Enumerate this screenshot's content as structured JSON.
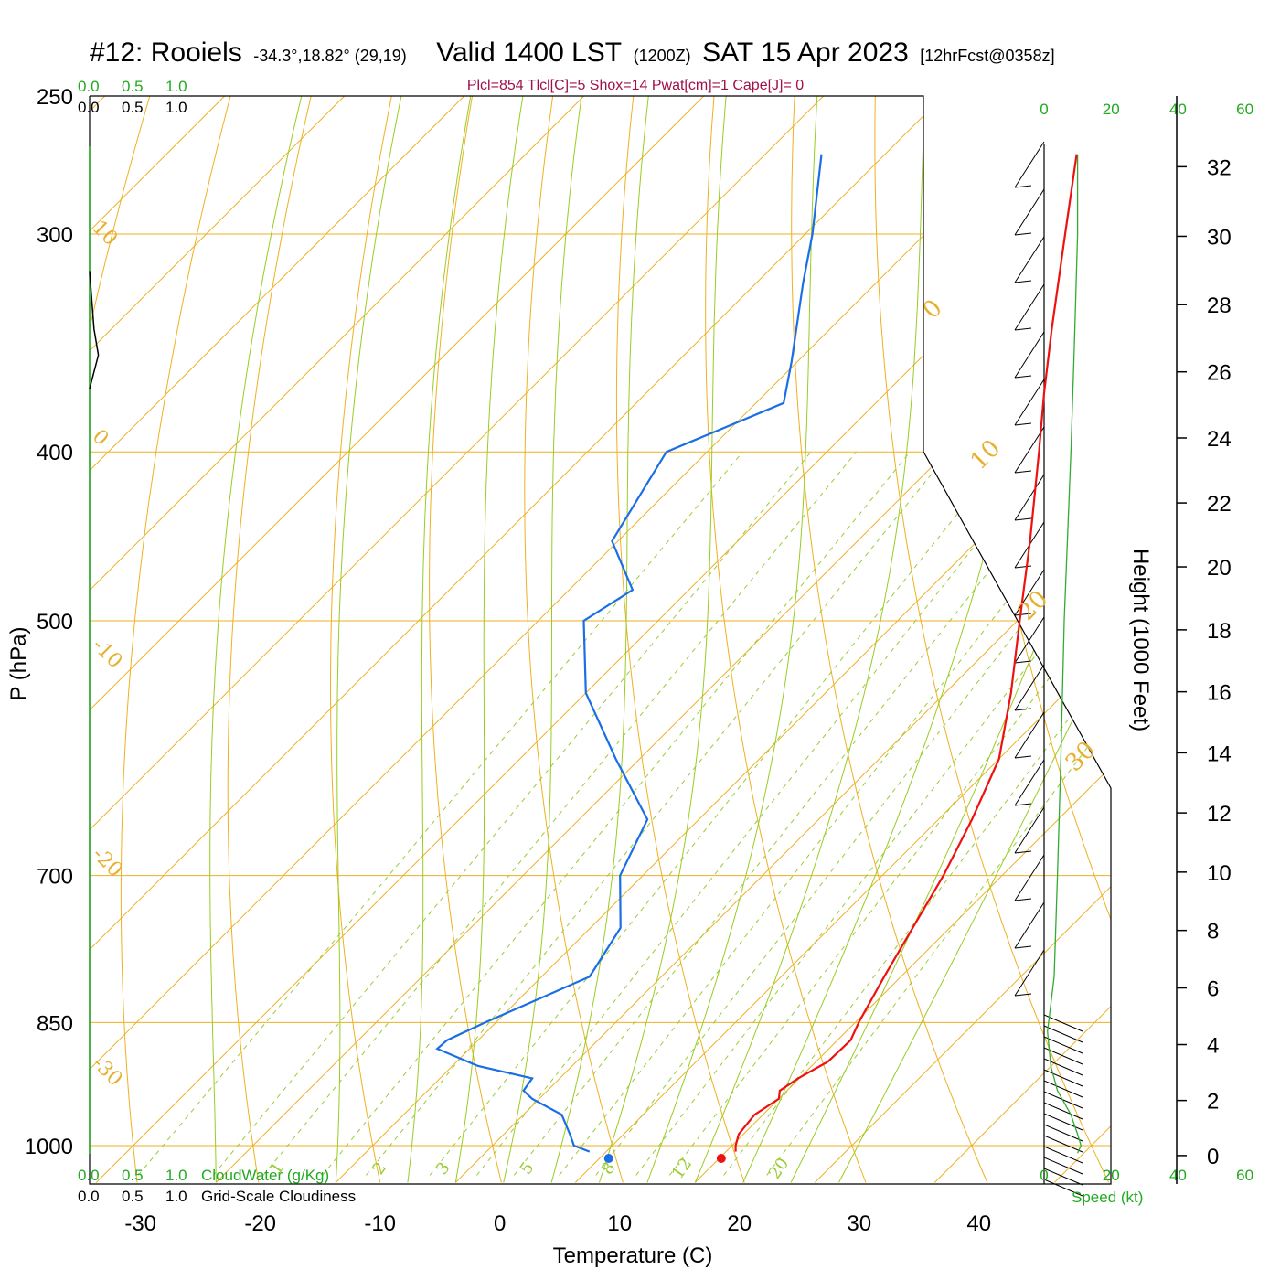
{
  "header": {
    "station": "#12: Rooiels",
    "coords": "-34.3°,18.82° (29,19)",
    "valid": "Valid 1400 LST",
    "utc": "(1200Z)",
    "date": "SAT 15 Apr 2023",
    "forecast": "[12hrFcst@0358z]",
    "params": "Plcl=854 Tlcl[C]=5 Shox=14 Pwat[cm]=1 Cape[J]= 0"
  },
  "colors": {
    "temperature": "#ee1111",
    "dewpoint": "#1a6ee6",
    "isotherm": "#f0b020",
    "moist_adiabat": "#99cc22",
    "mixing_ratio": "#99cc33",
    "cloudwater": "#22aa22",
    "speed": "#33aa33"
  },
  "chart_data": {
    "type": "line",
    "subtype": "skew-T log-P sounding",
    "xlabel": "Temperature (C)",
    "ylabel": "P (hPa)",
    "y2label": "Height (1000 Feet)",
    "x_ticks": [
      -30,
      -20,
      -10,
      0,
      10,
      20,
      30,
      40
    ],
    "x_tick_labels": [
      "-30",
      "-20",
      "-10",
      "0",
      "10",
      "20",
      "30",
      "40"
    ],
    "pressure_ticks": [
      250,
      300,
      400,
      500,
      700,
      850,
      1000
    ],
    "pressure_tick_labels": [
      "250",
      "300",
      "400",
      "500",
      "700",
      "850",
      "1000"
    ],
    "height_ticks": [
      0,
      2,
      4,
      6,
      8,
      10,
      12,
      14,
      16,
      18,
      20,
      22,
      24,
      26,
      28,
      30,
      32
    ],
    "height_tick_labels": [
      "0",
      "2",
      "4",
      "6",
      "8",
      "10",
      "12",
      "14",
      "16",
      "18",
      "20",
      "22",
      "24",
      "26",
      "28",
      "30",
      "32"
    ],
    "isotherm_labels_left": [
      "10",
      "0",
      "-10",
      "-20",
      "-30"
    ],
    "isotherm_labels_right": [
      "0",
      "10",
      "20",
      "30"
    ],
    "mixing_ratio_labels": [
      "1",
      "2",
      "3",
      "5",
      "8",
      "12",
      "20"
    ],
    "cloud_scale": {
      "ticks_top_green": [
        "0.0",
        "0.5",
        "1.0"
      ],
      "ticks_top_black": [
        "0.0",
        "0.5",
        "1.0"
      ],
      "ticks_bottom_green": [
        "0.0",
        "0.5",
        "1.0"
      ],
      "ticks_bottom_black": [
        "0.0",
        "0.5",
        "1.0"
      ],
      "cloudwater_label": "CloudWater (g/Kg)",
      "cloudiness_label": "Grid-Scale Cloudiness"
    },
    "speed_scale": {
      "ticks_black": [
        "0",
        "20",
        "40"
      ],
      "ticks_green": [
        "0",
        "20",
        "40",
        "60"
      ],
      "label": "Speed (kt)"
    },
    "series": [
      {
        "name": "temperature",
        "points": [
          {
            "p": 1008,
            "t": 20.8
          },
          {
            "p": 1000,
            "t": 20.3
          },
          {
            "p": 985,
            "t": 19.6
          },
          {
            "p": 960,
            "t": 19.3
          },
          {
            "p": 940,
            "t": 20.0
          },
          {
            "p": 930,
            "t": 19.4
          },
          {
            "p": 915,
            "t": 19.9
          },
          {
            "p": 895,
            "t": 21.0
          },
          {
            "p": 870,
            "t": 21.1
          },
          {
            "p": 850,
            "t": 20.3
          },
          {
            "p": 800,
            "t": 18.6
          },
          {
            "p": 750,
            "t": 16.9
          },
          {
            "p": 700,
            "t": 15.1
          },
          {
            "p": 650,
            "t": 12.8
          },
          {
            "p": 600,
            "t": 10.0
          },
          {
            "p": 550,
            "t": 5.5
          },
          {
            "p": 500,
            "t": 0.2
          },
          {
            "p": 450,
            "t": -5.6
          },
          {
            "p": 400,
            "t": -12.3
          },
          {
            "p": 370,
            "t": -16.8
          },
          {
            "p": 340,
            "t": -21.5
          },
          {
            "p": 300,
            "t": -28.3
          },
          {
            "p": 270,
            "t": -34.0
          }
        ]
      },
      {
        "name": "dewpoint",
        "points": [
          {
            "p": 1008,
            "t": 8.6
          },
          {
            "p": 1000,
            "t": 6.8
          },
          {
            "p": 985,
            "t": 5.5
          },
          {
            "p": 960,
            "t": 3.2
          },
          {
            "p": 940,
            "t": -0.6
          },
          {
            "p": 930,
            "t": -2.0
          },
          {
            "p": 915,
            "t": -2.3
          },
          {
            "p": 900,
            "t": -7.9
          },
          {
            "p": 880,
            "t": -12.7
          },
          {
            "p": 870,
            "t": -12.6
          },
          {
            "p": 850,
            "t": -10.9
          },
          {
            "p": 800,
            "t": -6.0
          },
          {
            "p": 750,
            "t": -7.5
          },
          {
            "p": 700,
            "t": -11.9
          },
          {
            "p": 650,
            "t": -14.3
          },
          {
            "p": 600,
            "t": -22.0
          },
          {
            "p": 550,
            "t": -30.0
          },
          {
            "p": 500,
            "t": -36.2
          },
          {
            "p": 480,
            "t": -34.7
          },
          {
            "p": 450,
            "t": -40.5
          },
          {
            "p": 400,
            "t": -43.4
          },
          {
            "p": 375,
            "t": -37.7
          },
          {
            "p": 355,
            "t": -40.5
          },
          {
            "p": 320,
            "t": -46.1
          },
          {
            "p": 300,
            "t": -49.4
          },
          {
            "p": 270,
            "t": -55.3
          }
        ]
      }
    ],
    "surface_markers": [
      {
        "name": "surface_dewpoint",
        "t": 10.2
      },
      {
        "name": "surface_temperature",
        "t": 19.6
      }
    ],
    "cloudiness_profile": [
      {
        "p": 315,
        "v": 0.0
      },
      {
        "p": 340,
        "v": 0.05
      },
      {
        "p": 352,
        "v": 0.1
      },
      {
        "p": 368,
        "v": 0.0
      }
    ],
    "wind_speed_profile": [
      {
        "p": 1010,
        "kt": 10
      },
      {
        "p": 1000,
        "kt": 11
      },
      {
        "p": 985,
        "kt": 10
      },
      {
        "p": 960,
        "kt": 8
      },
      {
        "p": 930,
        "kt": 4
      },
      {
        "p": 900,
        "kt": 2
      },
      {
        "p": 860,
        "kt": 1
      },
      {
        "p": 800,
        "kt": 3
      },
      {
        "p": 700,
        "kt": 4
      },
      {
        "p": 600,
        "kt": 5
      },
      {
        "p": 500,
        "kt": 6
      },
      {
        "p": 400,
        "kt": 8
      },
      {
        "p": 350,
        "kt": 9
      },
      {
        "p": 300,
        "kt": 10
      },
      {
        "p": 270,
        "kt": 10
      }
    ]
  }
}
